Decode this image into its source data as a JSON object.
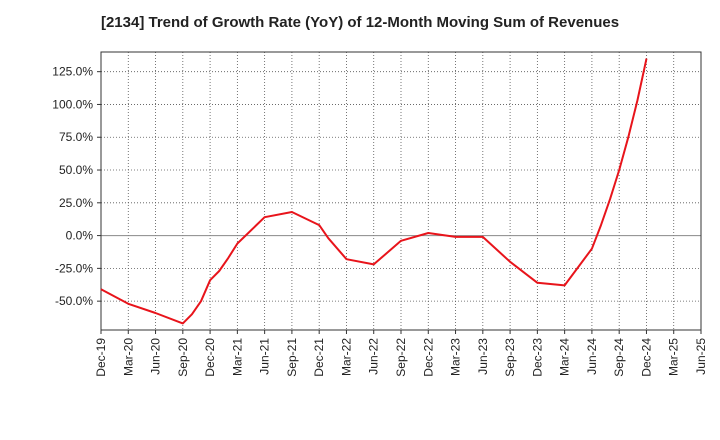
{
  "chart_data": {
    "type": "line",
    "title": "[2134]  Trend of Growth Rate (YoY) of 12-Month Moving Sum of Revenues",
    "xlabel": "",
    "ylabel": "",
    "x_tick_labels": [
      "Dec-19",
      "Mar-20",
      "Jun-20",
      "Sep-20",
      "Dec-20",
      "Mar-21",
      "Jun-21",
      "Sep-21",
      "Dec-21",
      "Mar-22",
      "Jun-22",
      "Sep-22",
      "Dec-22",
      "Mar-23",
      "Jun-23",
      "Sep-23",
      "Dec-23",
      "Mar-24",
      "Jun-24",
      "Sep-24",
      "Dec-24",
      "Mar-25",
      "Jun-25"
    ],
    "y_tick_labels": [
      "-50.0%",
      "-25.0%",
      "0.0%",
      "25.0%",
      "50.0%",
      "75.0%",
      "100.0%",
      "125.0%"
    ],
    "y_ticks": [
      -50,
      -25,
      0,
      25,
      50,
      75,
      100,
      125
    ],
    "ylim": [
      -72,
      140
    ],
    "grid": true,
    "series": [
      {
        "color": "#e8141b",
        "points": [
          [
            "Dec-19",
            -41
          ],
          [
            "Mar-20",
            -52
          ],
          [
            "Jun-20",
            -59
          ],
          [
            "Sep-20",
            -67
          ],
          [
            "Oct-20",
            -60
          ],
          [
            "Nov-20",
            -50
          ],
          [
            "Dec-20",
            -34
          ],
          [
            "Jan-21",
            -27
          ],
          [
            "Feb-21",
            -17
          ],
          [
            "Mar-21",
            -6
          ],
          [
            "Jun-21",
            14
          ],
          [
            "Sep-21",
            18
          ],
          [
            "Dec-21",
            8
          ],
          [
            "Jan-22",
            -2
          ],
          [
            "Mar-22",
            -18
          ],
          [
            "Jun-22",
            -22
          ],
          [
            "Sep-22",
            -4
          ],
          [
            "Dec-22",
            2
          ],
          [
            "Mar-23",
            -1
          ],
          [
            "Jun-23",
            -1
          ],
          [
            "Sep-23",
            -20
          ],
          [
            "Dec-23",
            -36
          ],
          [
            "Mar-24",
            -38
          ],
          [
            "Jun-24",
            -10
          ],
          [
            "Jul-24",
            8
          ],
          [
            "Aug-24",
            28
          ],
          [
            "Sep-24",
            50
          ],
          [
            "Oct-24",
            75
          ],
          [
            "Nov-24",
            103
          ],
          [
            "Dec-24",
            135
          ]
        ]
      }
    ]
  }
}
